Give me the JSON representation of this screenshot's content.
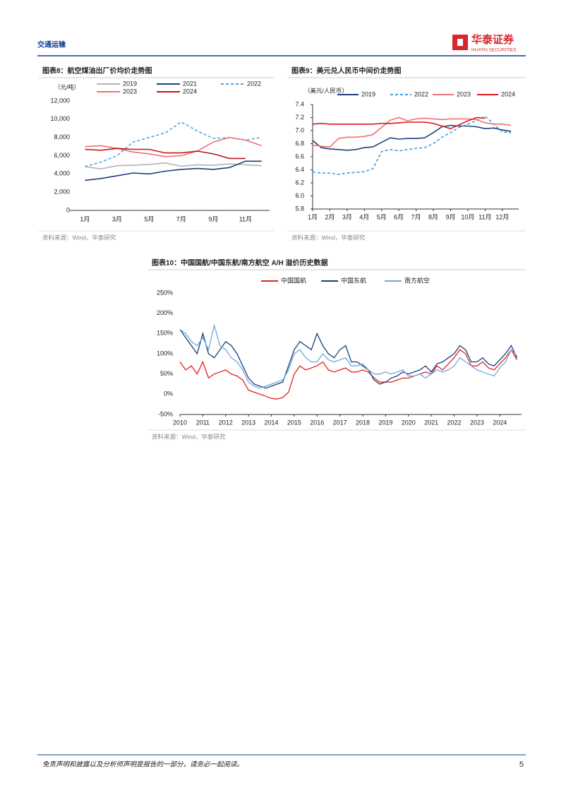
{
  "header": {
    "section": "交通运输",
    "brand": "华泰证券",
    "brand_en": "HUATAI SECURITIES"
  },
  "chart_data": [
    {
      "type": "line",
      "title": "图表8：航空煤油出厂价均价走势图",
      "y_unit": "（元/吨）",
      "source": "资料来源：Wind，华泰研究",
      "categories": [
        "1月",
        null,
        "3月",
        null,
        "5月",
        null,
        "7月",
        null,
        "9月",
        null,
        "11月",
        null
      ],
      "ylim": [
        0,
        12000
      ],
      "yticks": [
        0,
        {
          "value": 2000,
          "label": "2,000"
        },
        {
          "value": 4000,
          "label": "4,000"
        },
        {
          "value": 6000,
          "label": "6,000"
        },
        {
          "value": 8000,
          "label": "8,000"
        },
        {
          "value": 10000,
          "label": "10,000"
        },
        {
          "value": 12000,
          "label": "12,000"
        }
      ],
      "series": [
        {
          "name": "2019",
          "color": "#b4b4b4",
          "values": [
            4800,
            4550,
            4900,
            4950,
            5050,
            5200,
            4850,
            5000,
            4950,
            5100,
            5000,
            4900
          ]
        },
        {
          "name": "2021",
          "color": "#1f3f7a",
          "values": [
            3300,
            3500,
            3800,
            4100,
            4000,
            4300,
            4500,
            4600,
            4500,
            4700,
            5400,
            5400
          ]
        },
        {
          "name": "2022",
          "color": "#4aa8df",
          "style": "dashed",
          "values": [
            4800,
            5300,
            6000,
            7500,
            8000,
            8500,
            9700,
            8700,
            7900,
            8000,
            7700,
            8000
          ]
        },
        {
          "name": "2023",
          "color": "#f07070",
          "values": [
            7000,
            7100,
            6800,
            6400,
            6200,
            5900,
            6000,
            6500,
            7500,
            8000,
            7700,
            7100
          ]
        },
        {
          "name": "2024",
          "color": "#c0161e",
          "values": [
            6700,
            6600,
            6800,
            6700,
            6700,
            6300,
            6300,
            6500,
            6200,
            5700,
            5700,
            null
          ]
        }
      ]
    },
    {
      "type": "line",
      "title": "图表9：美元兑人民币中间价走势图",
      "y_unit": "（美元/人民币）",
      "source": "资料来源：Wind，华泰研究",
      "x": [
        1,
        1.5,
        2,
        2.5,
        3,
        3.5,
        4,
        4.5,
        5,
        5.5,
        6,
        6.5,
        7,
        7.5,
        8,
        8.5,
        9,
        9.5,
        10,
        10.5,
        11,
        11.5,
        12,
        12.5
      ],
      "xlim": [
        1,
        12.95
      ],
      "xticks": [
        {
          "value": 1,
          "label": "1月"
        },
        {
          "value": 2,
          "label": "2月"
        },
        {
          "value": 3,
          "label": "3月"
        },
        {
          "value": 4,
          "label": "4月"
        },
        {
          "value": 5,
          "label": "5月"
        },
        {
          "value": 6,
          "label": "6月"
        },
        {
          "value": 7,
          "label": "7月"
        },
        {
          "value": 8,
          "label": "8月"
        },
        {
          "value": 9,
          "label": "9月"
        },
        {
          "value": 10,
          "label": "10月"
        },
        {
          "value": 11,
          "label": "11月"
        },
        {
          "value": 12,
          "label": "12月"
        }
      ],
      "ylim": [
        5.8,
        7.4
      ],
      "yticks": [
        5.8,
        {
          "value": 6,
          "label": "6.0"
        },
        6.2,
        6.4,
        6.6,
        6.8,
        {
          "value": 7,
          "label": "7.0"
        },
        7.2,
        7.4
      ],
      "series": [
        {
          "name": "2019",
          "color": "#1f3f7a",
          "values": [
            6.85,
            6.74,
            6.72,
            6.71,
            6.7,
            6.71,
            6.74,
            6.75,
            6.82,
            6.89,
            6.87,
            6.88,
            6.88,
            6.89,
            6.97,
            7.06,
            7.08,
            7.07,
            7.07,
            7.06,
            7.03,
            7.04,
            7.01,
            6.99
          ]
        },
        {
          "name": "2022",
          "color": "#3aa0e0",
          "style": "dashed",
          "values": [
            6.37,
            6.35,
            6.35,
            6.33,
            6.35,
            6.36,
            6.37,
            6.42,
            6.68,
            6.71,
            6.69,
            6.71,
            6.73,
            6.74,
            6.8,
            6.9,
            6.97,
            7.05,
            7.1,
            7.15,
            7.22,
            7.1,
            6.98,
            6.97
          ]
        },
        {
          "name": "2023",
          "color": "#f07070",
          "values": [
            6.78,
            6.76,
            6.75,
            6.88,
            6.9,
            6.9,
            6.91,
            6.94,
            7.05,
            7.16,
            7.2,
            7.15,
            7.18,
            7.19,
            7.18,
            7.17,
            7.18,
            7.18,
            7.18,
            7.17,
            7.12,
            7.1,
            7.1,
            7.08
          ]
        },
        {
          "name": "2024",
          "color": "#e01818",
          "values": [
            7.1,
            7.11,
            7.1,
            7.1,
            7.1,
            7.1,
            7.1,
            7.1,
            7.11,
            7.11,
            7.12,
            7.13,
            7.13,
            7.13,
            7.11,
            7.07,
            7.03,
            7.09,
            7.15,
            7.2,
            7.19,
            null,
            null,
            null
          ]
        }
      ]
    },
    {
      "type": "line",
      "title": "图表10：中国国航/中国东航/南方航空 A/H 溢价历史数据",
      "source": "资料来源：Wind，华泰研究",
      "x": [
        2010,
        2010.25,
        2010.5,
        2010.75,
        2011,
        2011.25,
        2011.5,
        2011.75,
        2012,
        2012.25,
        2012.5,
        2012.75,
        2013,
        2013.25,
        2013.5,
        2013.75,
        2014,
        2014.25,
        2014.5,
        2014.75,
        2015,
        2015.25,
        2015.5,
        2015.75,
        2016,
        2016.25,
        2016.5,
        2016.75,
        2017,
        2017.25,
        2017.5,
        2017.75,
        2018,
        2018.25,
        2018.5,
        2018.75,
        2019,
        2019.25,
        2019.5,
        2019.75,
        2020,
        2020.25,
        2020.5,
        2020.75,
        2021,
        2021.25,
        2021.5,
        2021.75,
        2022,
        2022.25,
        2022.5,
        2022.75,
        2023,
        2023.25,
        2023.5,
        2023.75,
        2024,
        2024.25,
        2024.5,
        2024.75
      ],
      "xlim": [
        2010,
        2024.95
      ],
      "xticks": [
        2010,
        2011,
        2012,
        2013,
        2014,
        2015,
        2016,
        2017,
        2018,
        2019,
        2020,
        2021,
        2022,
        2023,
        2024
      ],
      "ylim": [
        -50,
        250
      ],
      "yticks": [
        {
          "value": -50,
          "label": "-50%"
        },
        {
          "value": 0,
          "label": "0%"
        },
        {
          "value": 50,
          "label": "50%"
        },
        {
          "value": 100,
          "label": "100%"
        },
        {
          "value": 150,
          "label": "150%"
        },
        {
          "value": 200,
          "label": "200%"
        },
        {
          "value": 250,
          "label": "250%"
        }
      ],
      "series": [
        {
          "name": "中国国航",
          "color": "#e32020",
          "values": [
            80,
            60,
            70,
            50,
            80,
            40,
            50,
            55,
            60,
            50,
            45,
            35,
            10,
            5,
            0,
            -5,
            -10,
            -12,
            -8,
            5,
            50,
            70,
            60,
            65,
            70,
            80,
            60,
            55,
            60,
            65,
            55,
            55,
            60,
            55,
            40,
            30,
            30,
            30,
            35,
            40,
            40,
            45,
            50,
            55,
            50,
            70,
            60,
            75,
            90,
            110,
            100,
            70,
            70,
            80,
            65,
            60,
            75,
            90,
            110,
            85
          ]
        },
        {
          "name": "中国东航",
          "color": "#163f7a",
          "values": [
            160,
            140,
            120,
            100,
            150,
            100,
            90,
            110,
            130,
            120,
            100,
            70,
            40,
            25,
            20,
            15,
            20,
            25,
            30,
            70,
            110,
            130,
            120,
            110,
            150,
            120,
            100,
            90,
            110,
            120,
            80,
            80,
            70,
            60,
            35,
            25,
            30,
            40,
            45,
            55,
            50,
            55,
            60,
            70,
            55,
            75,
            80,
            90,
            100,
            120,
            110,
            80,
            80,
            90,
            75,
            70,
            85,
            100,
            120,
            90
          ]
        },
        {
          "name": "南方航空",
          "color": "#6fa6dd",
          "values": [
            160,
            150,
            130,
            120,
            140,
            110,
            170,
            120,
            110,
            90,
            80,
            60,
            30,
            20,
            15,
            20,
            25,
            30,
            35,
            60,
            100,
            110,
            90,
            80,
            80,
            100,
            85,
            80,
            85,
            90,
            70,
            70,
            75,
            60,
            50,
            50,
            55,
            50,
            55,
            60,
            45,
            45,
            50,
            40,
            50,
            60,
            55,
            60,
            70,
            90,
            80,
            70,
            60,
            55,
            50,
            45,
            65,
            80,
            110,
            95
          ]
        }
      ]
    }
  ],
  "footer": {
    "disclaimer": "免责声明和披露以及分析师声明是报告的一部分，请务必一起阅读。",
    "page": "5"
  }
}
